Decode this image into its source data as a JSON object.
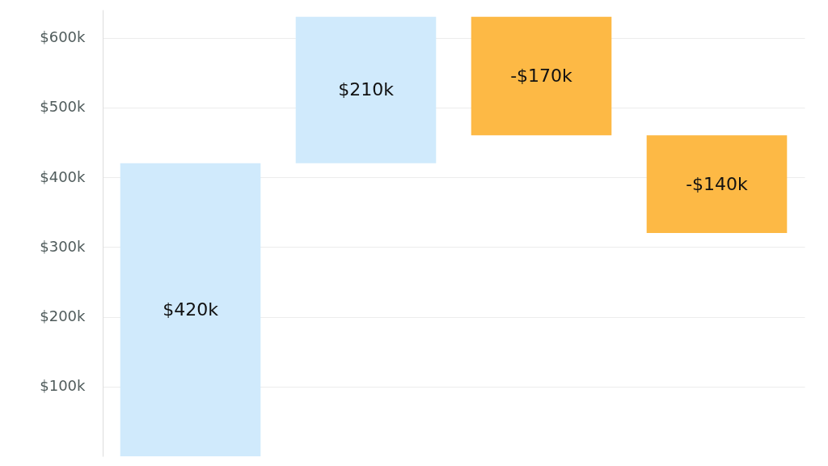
{
  "chart_data": {
    "type": "bar",
    "categories": [
      null,
      null,
      null,
      null
    ],
    "values": [
      420,
      210,
      -170,
      -140
    ],
    "base": [
      0,
      420,
      630,
      460
    ],
    "colors": [
      "#d0eafc",
      "#d0eafc",
      "#fdb945",
      "#fdb945"
    ],
    "value_labels": [
      "$420k",
      "$210k",
      "-$170k",
      "-$140k"
    ],
    "ylim": [
      0,
      640
    ],
    "yticks": [
      {
        "value": 100,
        "label": "$100k"
      },
      {
        "value": 200,
        "label": "$200k"
      },
      {
        "value": 300,
        "label": "$300k"
      },
      {
        "value": 400,
        "label": "$400k"
      },
      {
        "value": 500,
        "label": "$500k"
      },
      {
        "value": 600,
        "label": "$600k"
      }
    ],
    "grid": "y",
    "tick_labels": "y"
  }
}
